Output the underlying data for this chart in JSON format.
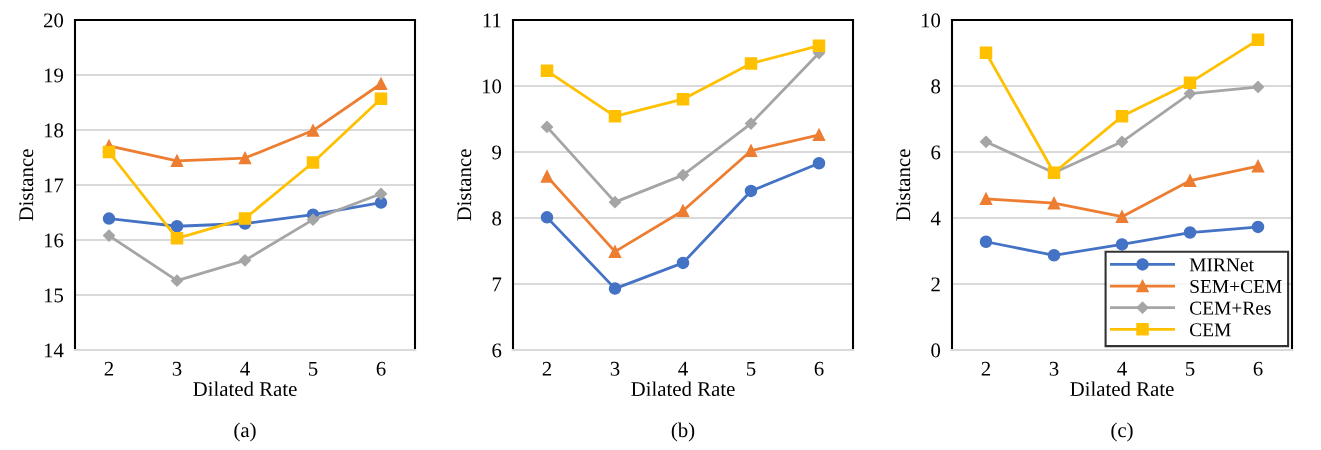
{
  "chart_data": [
    {
      "type": "line",
      "xlabel": "Dilated Rate",
      "ylabel": "Distance",
      "categories": [
        "2",
        "3",
        "4",
        "5",
        "6"
      ],
      "ylim": [
        14,
        20
      ],
      "yticks": [
        14,
        15,
        16,
        17,
        18,
        19,
        20
      ],
      "grid": "y",
      "legend": false,
      "annotations": [
        "(a)"
      ],
      "series": [
        {
          "color": "#4472c4",
          "marker": "circle",
          "values": [
            16.39,
            16.25,
            16.3,
            16.46,
            16.68
          ]
        },
        {
          "color": "#ed7d31",
          "marker": "triangle",
          "values": [
            17.71,
            17.44,
            17.49,
            17.99,
            18.84
          ]
        },
        {
          "color": "#a5a5a5",
          "marker": "diamond",
          "values": [
            16.08,
            15.26,
            15.63,
            16.37,
            16.84
          ]
        },
        {
          "color": "#ffc000",
          "marker": "square",
          "values": [
            17.6,
            16.03,
            16.39,
            17.41,
            18.57
          ]
        }
      ]
    },
    {
      "type": "line",
      "xlabel": "Dilated Rate",
      "ylabel": "Distance",
      "categories": [
        "2",
        "3",
        "4",
        "5",
        "6"
      ],
      "ylim": [
        6,
        11
      ],
      "yticks": [
        6,
        7,
        8,
        9,
        10,
        11
      ],
      "grid": "y",
      "legend": false,
      "annotations": [
        "(b)"
      ],
      "series": [
        {
          "color": "#4472c4",
          "marker": "circle",
          "values": [
            8.01,
            6.93,
            7.32,
            8.41,
            8.83
          ]
        },
        {
          "color": "#ed7d31",
          "marker": "triangle",
          "values": [
            8.63,
            7.49,
            8.11,
            9.02,
            9.26
          ]
        },
        {
          "color": "#a5a5a5",
          "marker": "diamond",
          "values": [
            9.38,
            8.24,
            8.65,
            9.43,
            10.5
          ]
        },
        {
          "color": "#ffc000",
          "marker": "square",
          "values": [
            10.23,
            9.54,
            9.8,
            10.34,
            10.61
          ]
        }
      ]
    },
    {
      "type": "line",
      "xlabel": "Dilated Rate",
      "ylabel": "Distance",
      "categories": [
        "2",
        "3",
        "4",
        "5",
        "6"
      ],
      "ylim": [
        0,
        10
      ],
      "yticks": [
        0,
        2,
        4,
        6,
        8,
        10
      ],
      "grid": "y",
      "legend": "lower right",
      "annotations": [
        "(c)"
      ],
      "series": [
        {
          "name": "MIRNet",
          "color": "#4472c4",
          "marker": "circle",
          "values": [
            3.28,
            2.87,
            3.2,
            3.56,
            3.73
          ]
        },
        {
          "name": "SEM+CEM",
          "color": "#ed7d31",
          "marker": "triangle",
          "values": [
            4.58,
            4.45,
            4.04,
            5.13,
            5.57
          ]
        },
        {
          "name": "CEM+Res",
          "color": "#a5a5a5",
          "marker": "diamond",
          "values": [
            6.31,
            5.37,
            6.31,
            7.77,
            7.97
          ]
        },
        {
          "name": "CEM",
          "color": "#ffc000",
          "marker": "square",
          "values": [
            9.01,
            5.37,
            7.08,
            8.1,
            9.4
          ]
        }
      ]
    }
  ]
}
